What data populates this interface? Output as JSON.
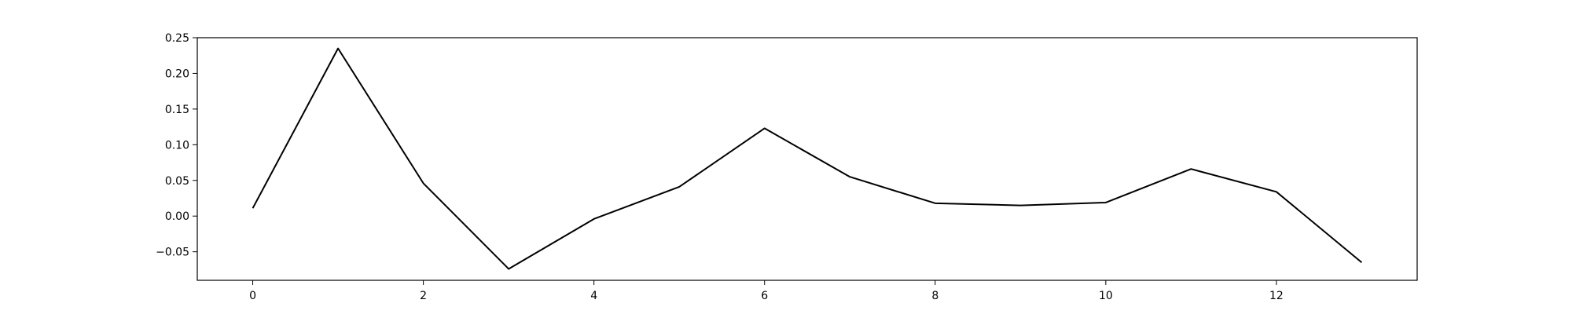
{
  "chart_data": {
    "type": "line",
    "title": "",
    "xlabel": "",
    "ylabel": "",
    "grid": false,
    "xlim": [
      -0.65,
      13.65
    ],
    "ylim": [
      -0.09,
      0.25
    ],
    "x_ticks": [
      0,
      2,
      4,
      6,
      8,
      10,
      12
    ],
    "x_tick_labels": [
      "0",
      "2",
      "4",
      "6",
      "8",
      "10",
      "12"
    ],
    "y_ticks": [
      -0.05,
      0.0,
      0.05,
      0.1,
      0.15,
      0.2,
      0.25
    ],
    "y_tick_labels": [
      "−0.05",
      "0.00",
      "0.05",
      "0.10",
      "0.15",
      "0.20",
      "0.25"
    ],
    "series": [
      {
        "color": "#000000",
        "x": [
          0,
          1,
          2,
          3,
          4,
          5,
          6,
          7,
          8,
          9,
          10,
          11,
          12,
          13
        ],
        "y": [
          0.011,
          0.235,
          0.046,
          -0.074,
          -0.004,
          0.041,
          0.123,
          0.055,
          0.018,
          0.015,
          0.019,
          0.066,
          0.034,
          -0.065
        ]
      }
    ]
  }
}
